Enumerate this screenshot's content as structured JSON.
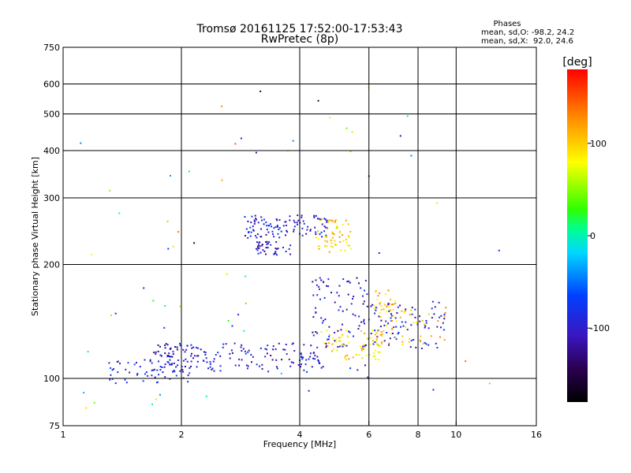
{
  "header": {
    "title_line1": "Tromsø 20161125 17:52:00-17:53:43",
    "title_line2": "RwPretec (8p)"
  },
  "legend": {
    "heading": "Phases",
    "line_o": "mean, sd,O: -98.2, 24.2",
    "line_x": "mean, sd,X:  92.0, 24.6"
  },
  "colorbar": {
    "unit": "[deg]",
    "range": [
      -180,
      180
    ],
    "ticks": [
      100,
      0,
      -100
    ],
    "tick_labels": [
      "100",
      "0",
      "-100"
    ]
  },
  "chart_data": {
    "type": "scatter",
    "title": "Tromsø 20161125 17:52:00-17:53:43",
    "subtitle": "RwPretec (8p)",
    "xlabel": "Frequency [MHz]",
    "ylabel": "Stationary phase Virtual Height [km]",
    "xscale": "log",
    "yscale": "log",
    "xlim": [
      1,
      16
    ],
    "ylim": [
      75,
      750
    ],
    "x_ticks": [
      1,
      2,
      4,
      6,
      8,
      10,
      16
    ],
    "x_tick_labels": [
      "1",
      "2",
      "4",
      "6",
      "8",
      "10",
      "16"
    ],
    "y_ticks": [
      75,
      100,
      200,
      300,
      400,
      500,
      600,
      750
    ],
    "y_tick_labels": [
      "75",
      "100",
      "200",
      "300",
      "400",
      "500",
      "600",
      "750"
    ],
    "x_gridlines": [
      2,
      4,
      6,
      8,
      10
    ],
    "y_gridlines": [
      100,
      200,
      300,
      400,
      500,
      600
    ],
    "color_by": "phase",
    "grid": true,
    "clusters": [
      {
        "region": "O-trace low layer",
        "x": [
          1.3,
          2.1
        ],
        "y": [
          97,
          112
        ],
        "phase": -90,
        "n": 60
      },
      {
        "region": "low trace",
        "x": [
          1.8,
          4.6
        ],
        "y": [
          104,
          124
        ],
        "phase": -100,
        "n": 150
      },
      {
        "region": "low trace upper edge",
        "x": [
          1.7,
          2.1
        ],
        "y": [
          114,
          124
        ],
        "phase": -110,
        "n": 30
      },
      {
        "region": "F-layer spread",
        "x": [
          2.9,
          4.7
        ],
        "y": [
          235,
          270
        ],
        "phase": -95,
        "n": 110
      },
      {
        "region": "F-layer lower",
        "x": [
          3.1,
          3.8
        ],
        "y": [
          212,
          230
        ],
        "phase": -100,
        "n": 40
      },
      {
        "region": "F-layer X trace",
        "x": [
          4.4,
          5.4
        ],
        "y": [
          215,
          265
        ],
        "phase": 100,
        "n": 60
      },
      {
        "region": "mid cluster",
        "x": [
          4.3,
          6.0
        ],
        "y": [
          120,
          185
        ],
        "phase": -105,
        "n": 90
      },
      {
        "region": "mid X cluster",
        "x": [
          4.5,
          6.5
        ],
        "y": [
          112,
          135
        ],
        "phase": 95,
        "n": 70
      },
      {
        "region": "upper X cluster",
        "x": [
          6.1,
          7.1
        ],
        "y": [
          150,
          172
        ],
        "phase": 105,
        "n": 25
      },
      {
        "region": "far trace",
        "x": [
          6.0,
          9.4
        ],
        "y": [
          120,
          160
        ],
        "phase": -95,
        "n": 80
      },
      {
        "region": "far X trace",
        "x": [
          6.2,
          9.6
        ],
        "y": [
          122,
          155
        ],
        "phase": 110,
        "n": 50
      },
      {
        "region": "scattered echoes",
        "x": [
          1.1,
          13
        ],
        "y": [
          80,
          600
        ],
        "phase": 0,
        "n": 70
      }
    ]
  }
}
